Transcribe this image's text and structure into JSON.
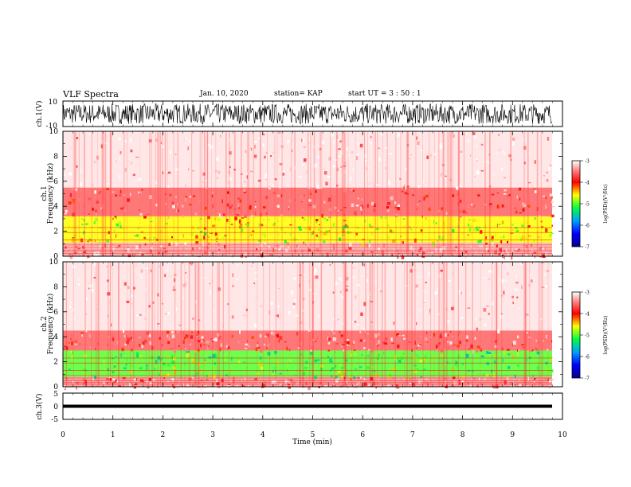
{
  "header": {
    "title": "VLF Spectra",
    "date": "Jan. 10, 2020",
    "station": "station= KAP",
    "start": "start  UT  =   3  : 50 : 1"
  },
  "chart_data": [
    {
      "type": "line",
      "panel": "ch1-waveform",
      "ylabel": "ch.1(V)",
      "ylim": [
        -10,
        10
      ],
      "yticks": [
        "10",
        "-10"
      ],
      "xlim": [
        0,
        10
      ],
      "note_values": "dense oscillating waveform spanning roughly -8 to +8 V",
      "series": [
        {
          "values_range": [
            -8,
            8
          ]
        }
      ]
    },
    {
      "type": "heatmap",
      "panel": "ch1-spectrogram",
      "ylabel": "ch.1\nFrequency  (kHz)",
      "ylim": [
        0,
        10
      ],
      "yticks": [
        "0",
        "2",
        "4",
        "6",
        "8",
        "10"
      ],
      "xlim": [
        0,
        10
      ],
      "bands": [
        {
          "from_khz": 0.0,
          "to_khz": 1.1,
          "level": -3.3
        },
        {
          "from_khz": 1.1,
          "to_khz": 3.2,
          "level": -4.6
        },
        {
          "from_khz": 3.2,
          "to_khz": 5.5,
          "level": -3.6
        },
        {
          "from_khz": 5.5,
          "to_khz": 10.0,
          "level": -3.1
        }
      ],
      "colorbar": {
        "label": "log(PSD)(V²/Hz)",
        "min": -7,
        "max": -3,
        "ticks": [
          "-3",
          "-4",
          "-5",
          "-6",
          "-7"
        ]
      }
    },
    {
      "type": "heatmap",
      "panel": "ch2-spectrogram",
      "ylabel": "ch.2\nFrequency  (kHz)",
      "ylim": [
        0,
        10
      ],
      "yticks": [
        "0",
        "2",
        "4",
        "6",
        "8",
        "10"
      ],
      "xlim": [
        0,
        10
      ],
      "bands": [
        {
          "from_khz": 0.0,
          "to_khz": 0.8,
          "level": -3.4
        },
        {
          "from_khz": 0.8,
          "to_khz": 2.9,
          "level": -5.0
        },
        {
          "from_khz": 2.9,
          "to_khz": 4.5,
          "level": -3.6
        },
        {
          "from_khz": 4.5,
          "to_khz": 10.0,
          "level": -3.1
        }
      ],
      "colorbar": {
        "label": "log(PSD)(V²/Hz)",
        "min": -7,
        "max": -3,
        "ticks": [
          "-3",
          "-4",
          "-5",
          "-6",
          "-7"
        ]
      }
    },
    {
      "type": "line",
      "panel": "ch3-waveform",
      "ylabel": "ch.3(V)",
      "ylim": [
        -5,
        5
      ],
      "yticks": [
        "5",
        "0",
        "-5"
      ],
      "xlim": [
        0,
        10
      ],
      "xlabel": "Time  (min)",
      "xticks": [
        "0",
        "1",
        "2",
        "3",
        "4",
        "5",
        "6",
        "7",
        "8",
        "9",
        "10"
      ],
      "series": [
        {
          "values_range": [
            -0.6,
            0.6
          ]
        }
      ]
    }
  ]
}
